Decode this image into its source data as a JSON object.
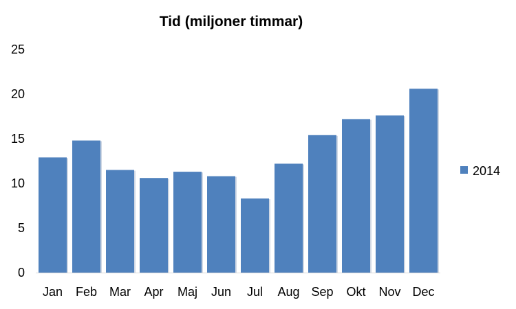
{
  "chart_data": {
    "type": "bar",
    "title": "Tid (miljoner timmar)",
    "categories": [
      "Jan",
      "Feb",
      "Mar",
      "Apr",
      "Maj",
      "Jun",
      "Jul",
      "Aug",
      "Sep",
      "Okt",
      "Nov",
      "Dec"
    ],
    "series": [
      {
        "name": "2014",
        "values": [
          12.9,
          14.8,
          11.5,
          10.6,
          11.3,
          10.8,
          8.3,
          12.2,
          15.4,
          17.2,
          17.6,
          20.6
        ],
        "color": "#4f81bd"
      }
    ],
    "ylim": [
      0,
      25
    ],
    "yticks": [
      0,
      5,
      10,
      15,
      20,
      25
    ],
    "grid": false,
    "legend": "right"
  }
}
